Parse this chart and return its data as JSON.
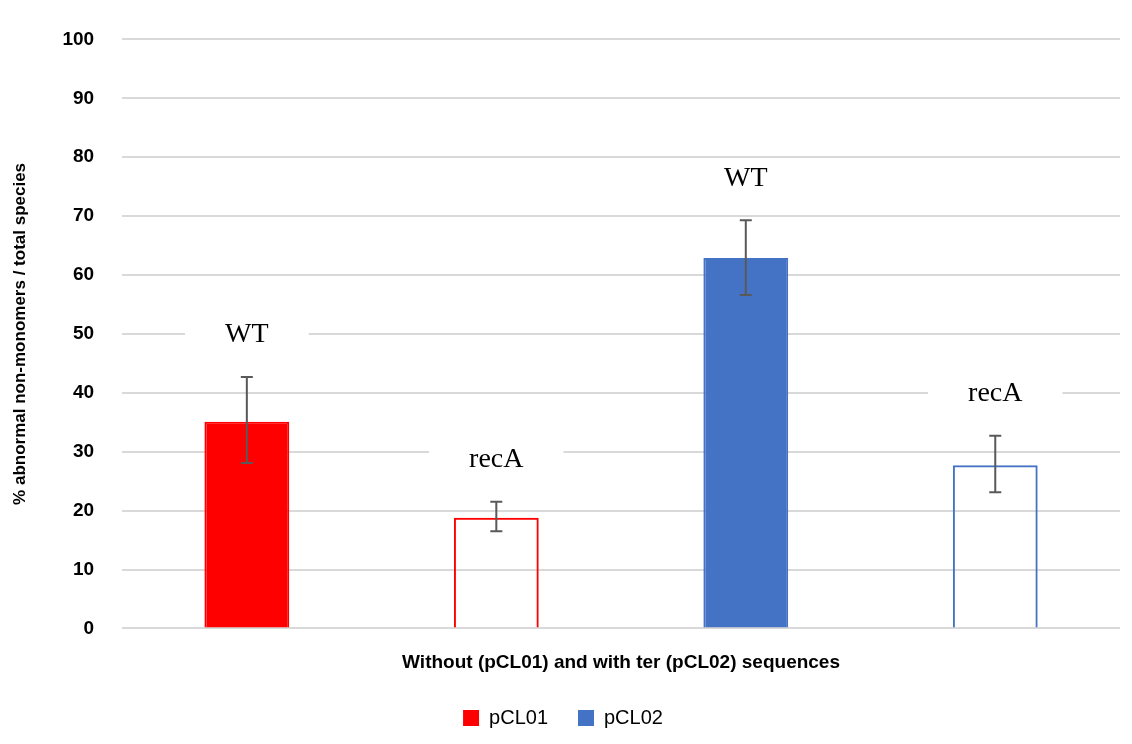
{
  "chart_data": {
    "type": "bar",
    "xlabel": "Without (pCL01) and with ter (pCL02) sequences",
    "ylabel": "% abnormal non-monomers / total species",
    "categories": [
      null,
      null,
      null,
      null
    ],
    "series": [
      {
        "name": "pCL01",
        "color": "#ff0000",
        "colors": [
          "#ff0000",
          null,
          null,
          null
        ],
        "values": [
          35.1,
          18.8,
          null,
          null
        ],
        "errors": [
          [
            28.1,
            42.7
          ],
          [
            16.5,
            21.5
          ],
          null,
          null
        ]
      },
      {
        "name": "pCL02",
        "color": "#4472c4",
        "colors": [
          null,
          null,
          "#4472c4",
          null
        ],
        "values": [
          null,
          null,
          62.9,
          27.7
        ],
        "errors": [
          null,
          null,
          [
            56.6,
            69.3
          ],
          [
            23.1,
            32.7
          ]
        ]
      }
    ],
    "annotations": [
      "WT",
      "recA",
      "WT",
      "recA"
    ],
    "ylim": [
      0,
      100
    ],
    "yticks": [
      0,
      10,
      20,
      30,
      40,
      50,
      60,
      70,
      80,
      90,
      100
    ],
    "grid": "y",
    "legend": "bottom"
  }
}
